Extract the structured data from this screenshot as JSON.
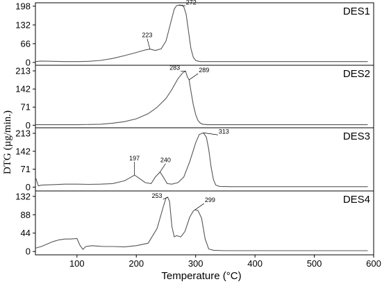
{
  "chart_data": {
    "type": "line",
    "xlabel": "Temperature (°C)",
    "ylabel": "DTG (µg/min.)",
    "xlim": [
      30,
      600
    ],
    "xticks": [
      100,
      200,
      300,
      400,
      500,
      600
    ],
    "panels": [
      {
        "name": "DES1",
        "ylim": [
          -10,
          210
        ],
        "yticks": [
          0,
          66,
          132,
          198
        ],
        "x": [
          30,
          40,
          60,
          80,
          100,
          120,
          140,
          160,
          180,
          200,
          215,
          223,
          232,
          242,
          250,
          258,
          264,
          268,
          272,
          276,
          280,
          284,
          288,
          292,
          296,
          300,
          305,
          310,
          320,
          340,
          400,
          450,
          500,
          550,
          590
        ],
        "y": [
          3,
          5,
          4,
          3,
          3,
          4,
          7,
          14,
          24,
          35,
          44,
          47,
          42,
          48,
          75,
          140,
          188,
          200,
          202,
          201,
          196,
          170,
          110,
          50,
          18,
          7,
          4,
          3,
          3,
          3,
          3,
          3,
          3,
          3,
          3
        ],
        "annotations": [
          {
            "label": "223",
            "x": 223,
            "y": 47
          },
          {
            "label": "272",
            "x": 272,
            "y": 202
          }
        ]
      },
      {
        "name": "DES2",
        "ylim": [
          -10,
          235
        ],
        "yticks": [
          0,
          71,
          142,
          213
        ],
        "x": [
          30,
          60,
          100,
          140,
          160,
          180,
          200,
          220,
          235,
          250,
          260,
          270,
          278,
          283,
          286,
          289,
          292,
          296,
          300,
          304,
          308,
          312,
          320,
          340,
          400,
          450,
          500,
          550,
          590
        ],
        "y": [
          2,
          2,
          2,
          4,
          8,
          14,
          25,
          45,
          70,
          105,
          140,
          182,
          205,
          212,
          190,
          178,
          135,
          80,
          42,
          18,
          8,
          4,
          2,
          2,
          2,
          2,
          2,
          2,
          2
        ],
        "annotations": [
          {
            "label": "283",
            "x": 283,
            "y": 212
          },
          {
            "label": "289",
            "x": 289,
            "y": 178
          }
        ]
      },
      {
        "name": "DES3",
        "ylim": [
          -15,
          235
        ],
        "yticks": [
          0,
          71,
          142,
          213
        ],
        "x": [
          30,
          35,
          40,
          60,
          80,
          100,
          120,
          140,
          160,
          180,
          190,
          197,
          205,
          215,
          225,
          232,
          240,
          246,
          252,
          260,
          270,
          280,
          290,
          300,
          306,
          313,
          318,
          322,
          326,
          330,
          334,
          340,
          360,
          400,
          450,
          500,
          550,
          590
        ],
        "y": [
          40,
          5,
          8,
          10,
          12,
          12,
          11,
          12,
          14,
          25,
          38,
          48,
          35,
          18,
          14,
          40,
          60,
          38,
          14,
          12,
          18,
          40,
          100,
          175,
          208,
          215,
          198,
          150,
          80,
          30,
          8,
          3,
          2,
          2,
          2,
          2,
          2,
          2
        ],
        "annotations": [
          {
            "label": "197",
            "x": 197,
            "y": 48
          },
          {
            "label": "240",
            "x": 240,
            "y": 60
          },
          {
            "label": "313",
            "x": 313,
            "y": 215
          }
        ]
      },
      {
        "name": "DES4",
        "ylim": [
          -8,
          145
        ],
        "yticks": [
          0,
          44,
          88,
          132
        ],
        "x": [
          30,
          40,
          50,
          60,
          70,
          80,
          90,
          100,
          105,
          110,
          115,
          125,
          135,
          145,
          160,
          180,
          200,
          220,
          235,
          245,
          250,
          253,
          256,
          260,
          264,
          268,
          275,
          282,
          290,
          296,
          299,
          304,
          310,
          316,
          322,
          330,
          350,
          400,
          450,
          500,
          550,
          590
        ],
        "y": [
          8,
          12,
          18,
          24,
          28,
          30,
          30,
          31,
          15,
          5,
          12,
          14,
          13,
          12,
          12,
          11,
          14,
          20,
          55,
          105,
          128,
          130,
          120,
          60,
          35,
          38,
          35,
          48,
          82,
          97,
          100,
          98,
          80,
          30,
          6,
          3,
          2,
          2,
          2,
          2,
          2,
          2
        ],
        "annotations": [
          {
            "label": "253",
            "x": 253,
            "y": 130
          },
          {
            "label": "299",
            "x": 299,
            "y": 100
          }
        ]
      }
    ]
  }
}
